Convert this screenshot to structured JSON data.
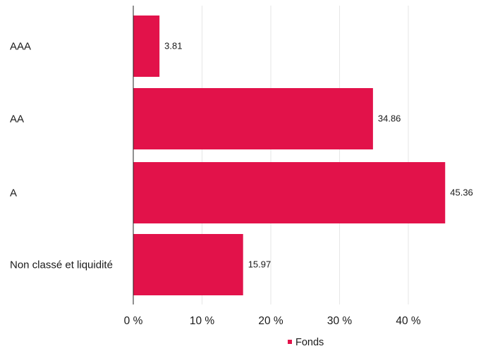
{
  "chart_data": {
    "type": "bar",
    "orientation": "horizontal",
    "categories": [
      "AAA",
      "AA",
      "A",
      "Non classé et liquidité"
    ],
    "series": [
      {
        "name": "Fonds",
        "values": [
          3.81,
          34.86,
          45.36,
          15.97
        ],
        "value_labels": [
          "3.81",
          "34.86",
          "45.36",
          "15.97"
        ]
      }
    ],
    "x_ticks": [
      0,
      10,
      20,
      30,
      40
    ],
    "x_tick_labels": [
      "0 %",
      "10 %",
      "20 %",
      "30 %",
      "40 %"
    ],
    "xlim": [
      0,
      46
    ],
    "grid": true,
    "legend_position": "bottom-center",
    "title": "",
    "xlabel": "",
    "ylabel": ""
  },
  "colors": {
    "bar": "#e2124a",
    "grid": "#e6e6e6",
    "axis": "#222222",
    "text": "#1a1a1a"
  }
}
